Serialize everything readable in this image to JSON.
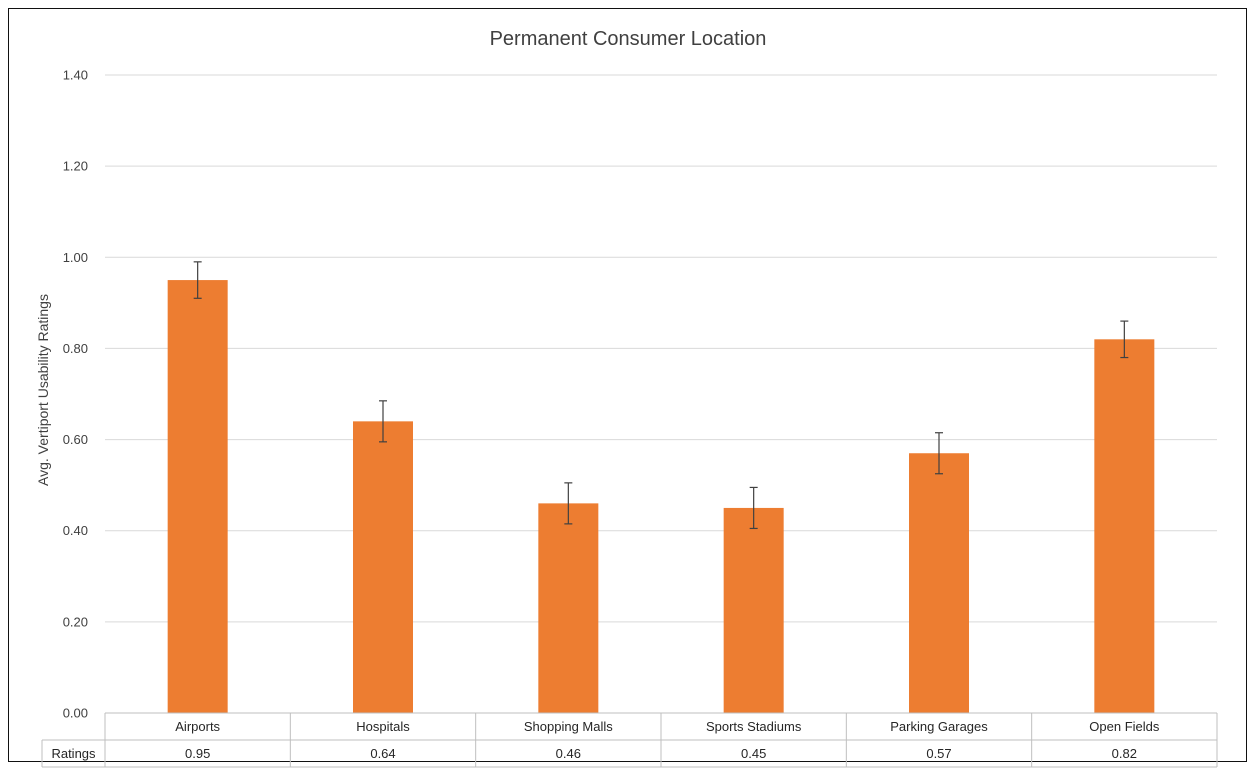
{
  "chart_data": {
    "type": "bar",
    "title": "Permanent Consumer Location",
    "ylabel": "Avg. Vertiport Usability Ratings",
    "xlabel": "",
    "ylim": [
      0,
      1.4
    ],
    "yticks": [
      "0.00",
      "0.20",
      "0.40",
      "0.60",
      "0.80",
      "1.00",
      "1.20",
      "1.40"
    ],
    "grid": true,
    "color": "#ED7D31",
    "categories": [
      "Airports",
      "Hospitals",
      "Shopping Malls",
      "Sports Stadiums",
      "Parking Garages",
      "Open Fields"
    ],
    "series": [
      {
        "name": "Ratings",
        "values": [
          0.95,
          0.64,
          0.46,
          0.45,
          0.57,
          0.82
        ],
        "labels": [
          "0.95",
          "0.64",
          "0.46",
          "0.45",
          "0.57",
          "0.82"
        ],
        "error": [
          0.04,
          0.045,
          0.045,
          0.045,
          0.045,
          0.04
        ]
      }
    ],
    "data_table": true
  }
}
